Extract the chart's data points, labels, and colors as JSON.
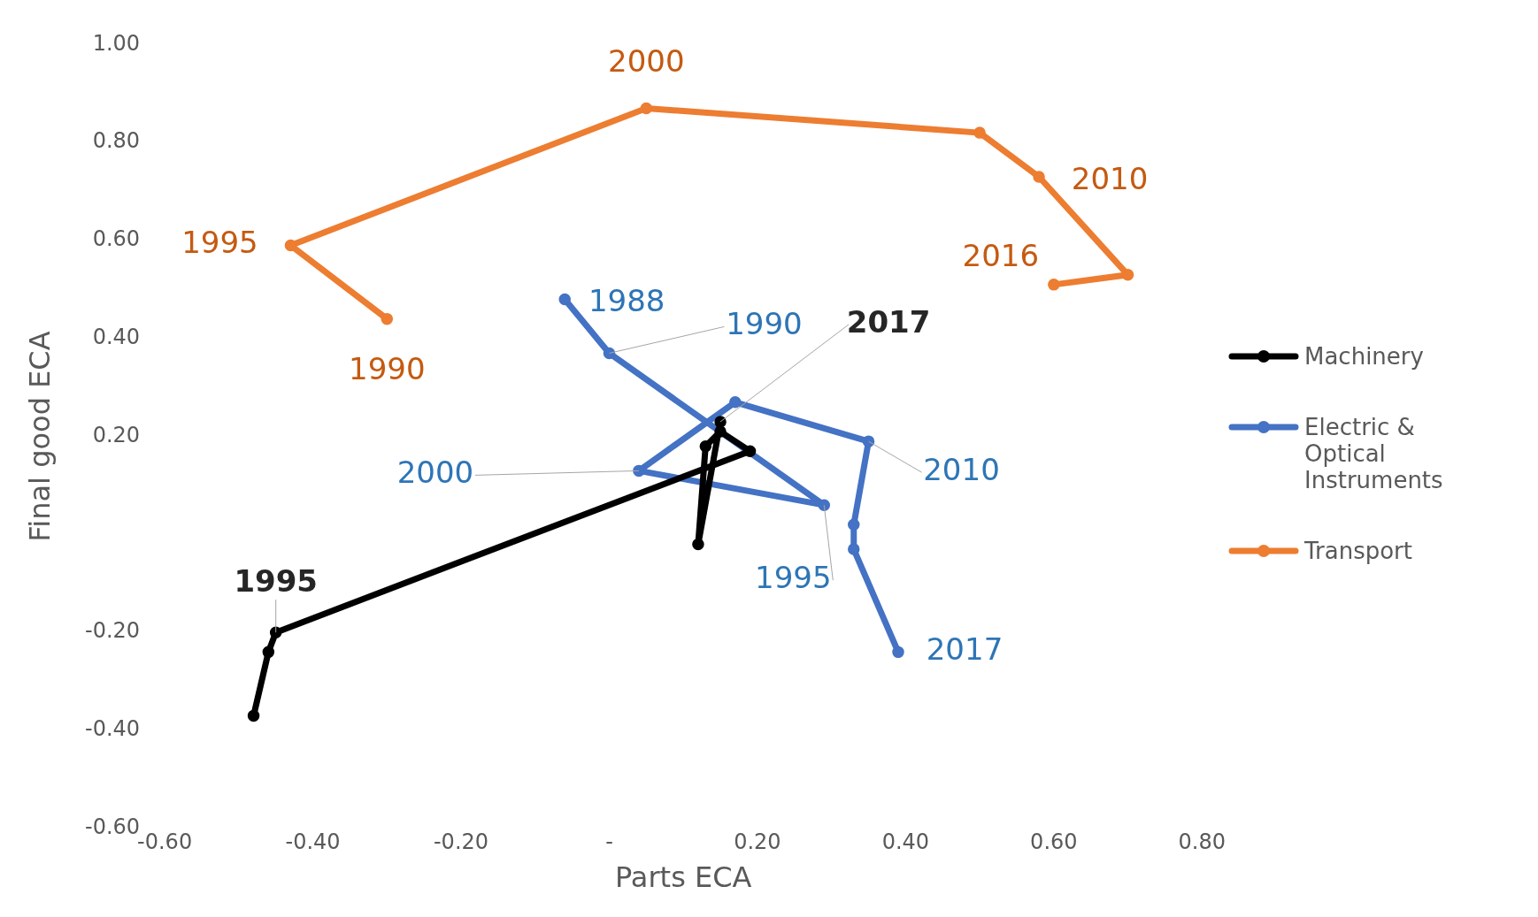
{
  "chart_data": {
    "type": "line",
    "xlabel": "Parts ECA",
    "ylabel": "Final good ECA",
    "series": [
      {
        "name": "Machinery",
        "color": "#000000",
        "x": [
          -0.48,
          -0.46,
          -0.45,
          0.19,
          0.15,
          0.13,
          0.12,
          0.15
        ],
        "values": [
          -0.37,
          -0.24,
          -0.2,
          0.17,
          0.21,
          0.18,
          -0.02,
          0.23
        ]
      },
      {
        "name": "Electric & Optical Instruments",
        "color": "#4472c4",
        "x": [
          -0.06,
          0.0,
          0.29,
          0.04,
          0.17,
          0.35,
          0.33,
          0.33,
          0.39
        ],
        "values": [
          0.48,
          0.37,
          0.06,
          0.13,
          0.27,
          0.19,
          0.02,
          -0.03,
          -0.24
        ]
      },
      {
        "name": "Transport",
        "color": "#ed7d31",
        "x": [
          -0.3,
          -0.43,
          0.05,
          0.5,
          0.58,
          0.7,
          0.6
        ],
        "values": [
          0.44,
          0.59,
          0.87,
          0.82,
          0.73,
          0.53,
          0.51
        ]
      }
    ],
    "xlim": [
      -0.6,
      0.8
    ],
    "xticks": [
      {
        "value": -0.6,
        "label": "-0.60"
      },
      {
        "value": -0.4,
        "label": "-0.40"
      },
      {
        "value": -0.2,
        "label": "-0.20"
      },
      {
        "value": 0,
        "label": "-"
      },
      {
        "value": 0.2,
        "label": "0.20"
      },
      {
        "value": 0.4,
        "label": "0.40"
      },
      {
        "value": 0.6,
        "label": "0.60"
      },
      {
        "value": 0.8,
        "label": "0.80"
      }
    ],
    "ylim": [
      -0.6,
      1.0
    ],
    "yticks": [
      {
        "value": -0.6,
        "label": "-0.60"
      },
      {
        "value": -0.4,
        "label": "-0.40"
      },
      {
        "value": -0.2,
        "label": "-0.20"
      },
      {
        "value": 0.2,
        "label": "0.20"
      },
      {
        "value": 0.4,
        "label": "0.40"
      },
      {
        "value": 0.6,
        "label": "0.60"
      },
      {
        "value": 0.8,
        "label": "0.80"
      },
      {
        "value": 1.0,
        "label": "1.00"
      }
    ],
    "marker": "circle",
    "legend": "right",
    "grid": false,
    "annotations": [
      {
        "text": "1995",
        "x": -0.45,
        "y": -0.2
      },
      {
        "text": "2017",
        "x": 0.15,
        "y": 0.23
      },
      {
        "text": "1988",
        "x": -0.06,
        "y": 0.48
      },
      {
        "text": "1990",
        "x": 0.0,
        "y": 0.37
      },
      {
        "text": "1995",
        "x": 0.29,
        "y": 0.06
      },
      {
        "text": "2000",
        "x": 0.04,
        "y": 0.13
      },
      {
        "text": "2010",
        "x": 0.35,
        "y": 0.19
      },
      {
        "text": "2017",
        "x": 0.39,
        "y": -0.24
      },
      {
        "text": "1990",
        "x": -0.3,
        "y": 0.44
      },
      {
        "text": "1995",
        "x": -0.43,
        "y": 0.59
      },
      {
        "text": "2000",
        "x": 0.05,
        "y": 0.87
      },
      {
        "text": "2010",
        "x": 0.58,
        "y": 0.73
      },
      {
        "text": "2016",
        "x": 0.6,
        "y": 0.51
      }
    ]
  }
}
